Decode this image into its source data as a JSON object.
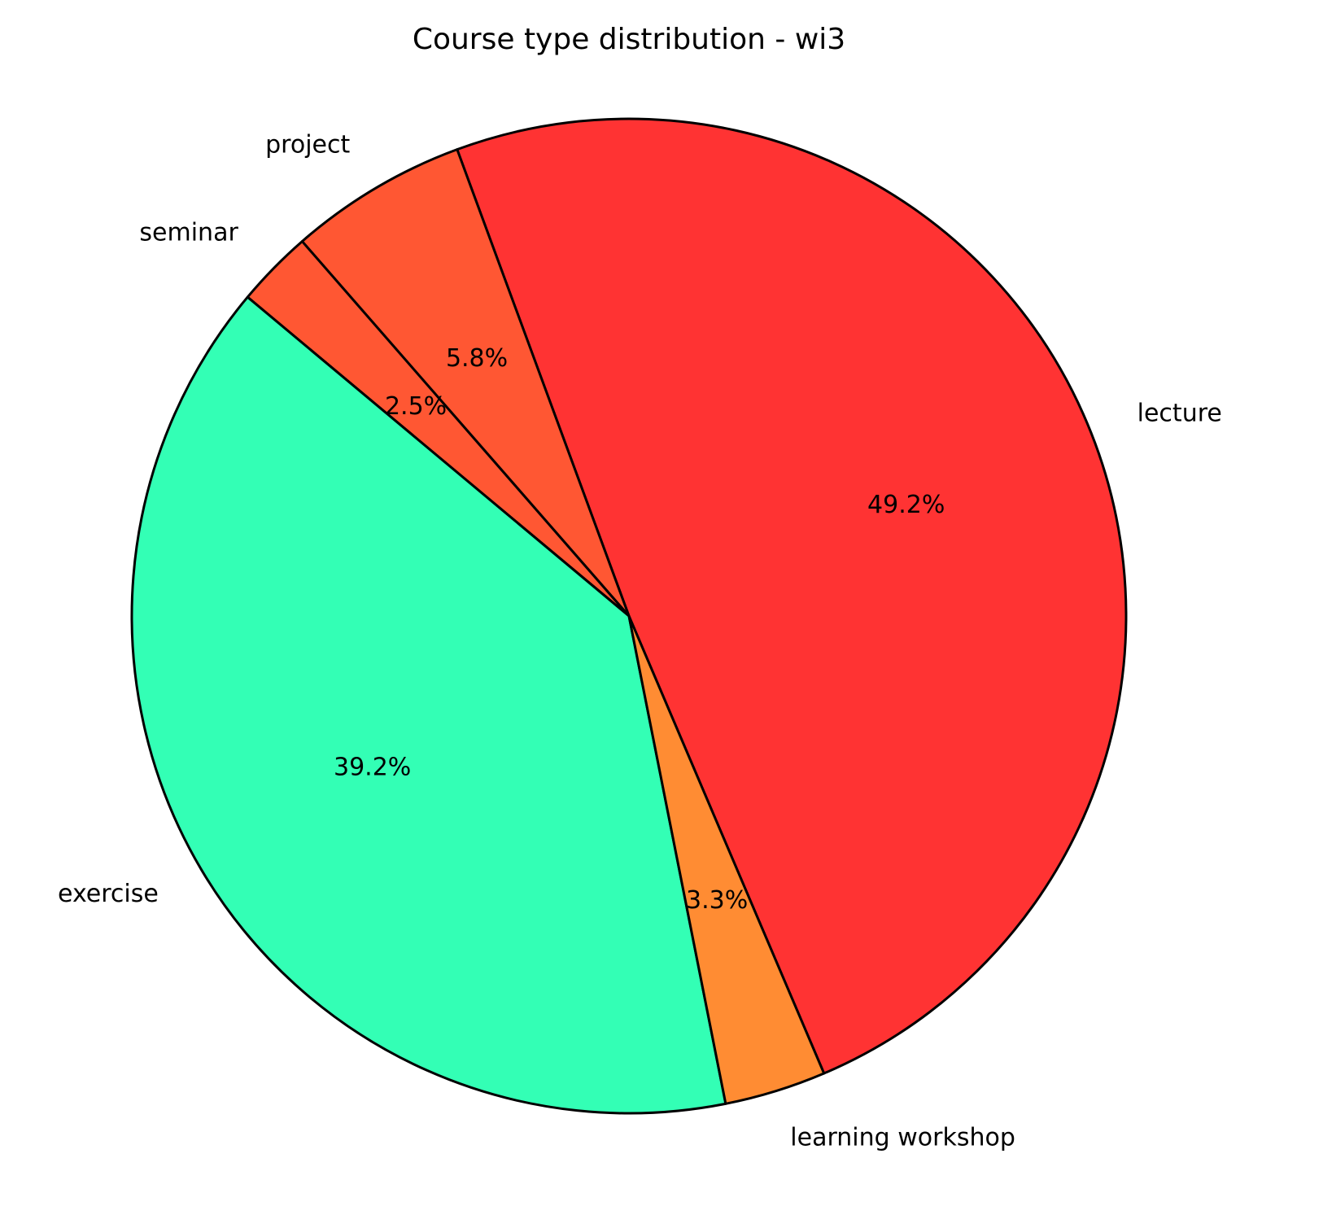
{
  "chart_data": {
    "type": "pie",
    "title": "Course type distribution - wi3",
    "categories": [
      "lecture",
      "project",
      "seminar",
      "exercise",
      "learning workshop"
    ],
    "values": [
      49.2,
      5.8,
      2.5,
      39.2,
      3.3
    ],
    "value_labels": [
      "49.2%",
      "5.8%",
      "2.5%",
      "39.2%",
      "3.3%"
    ],
    "colors": [
      "#ff3333",
      "#ff5733",
      "#ff5733",
      "#33ffb5",
      "#ff8c33"
    ]
  }
}
